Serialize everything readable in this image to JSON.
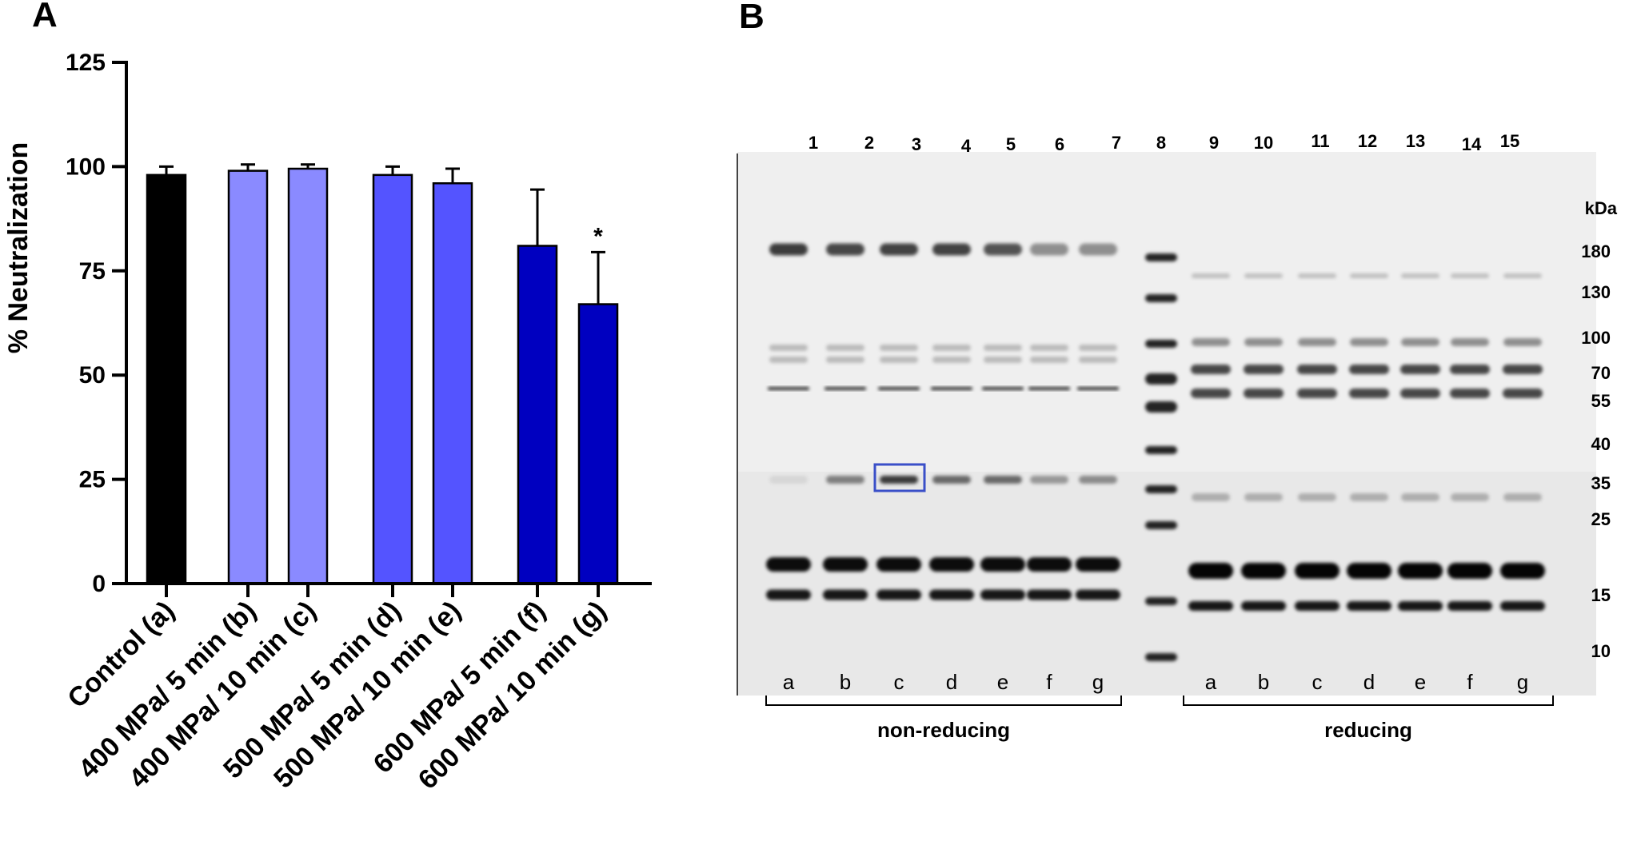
{
  "panel_a_label": "A",
  "panel_b_label": "B",
  "chart_data": {
    "type": "bar",
    "title": "",
    "xlabel": "",
    "ylabel": "% Neutralization",
    "ylim": [
      0,
      125
    ],
    "yticks": [
      0,
      25,
      50,
      75,
      100,
      125
    ],
    "categories": [
      "Control (a)",
      "400 MPa/ 5 min (b)",
      "400 MPa/ 10 min (c)",
      "500 MPa/ 5 min (d)",
      "500 MPa/ 10 min (e)",
      "600 MPa/ 5 min (f)",
      "600 MPa/ 10 min (g)"
    ],
    "values": [
      98,
      99,
      99.5,
      98,
      96,
      81,
      67
    ],
    "errors": [
      2,
      1.5,
      1,
      2,
      3.5,
      13.5,
      12.5
    ],
    "colors": [
      "#000000",
      "#8a8aff",
      "#8a8aff",
      "#5454ff",
      "#5454ff",
      "#0000c0",
      "#0000c0"
    ],
    "significance": [
      "",
      "",
      "",
      "",
      "",
      "",
      "*"
    ],
    "grid": false
  },
  "gel": {
    "lane_numbers": [
      "1",
      "2",
      "3",
      "4",
      "5",
      "6",
      "7",
      "8",
      "9",
      "10",
      "11",
      "12",
      "13",
      "14",
      "15"
    ],
    "kda_label": "kDa",
    "marker_kda": [
      "180",
      "130",
      "100",
      "70",
      "55",
      "40",
      "35",
      "25",
      "15",
      "10"
    ],
    "lane_letters_left": [
      "a",
      "b",
      "c",
      "d",
      "e",
      "f",
      "g"
    ],
    "lane_letters_right": [
      "a",
      "b",
      "c",
      "d",
      "e",
      "f",
      "g"
    ],
    "group_left": "non-reducing",
    "group_right": "reducing",
    "highlight_color": "#3a4fc8"
  }
}
